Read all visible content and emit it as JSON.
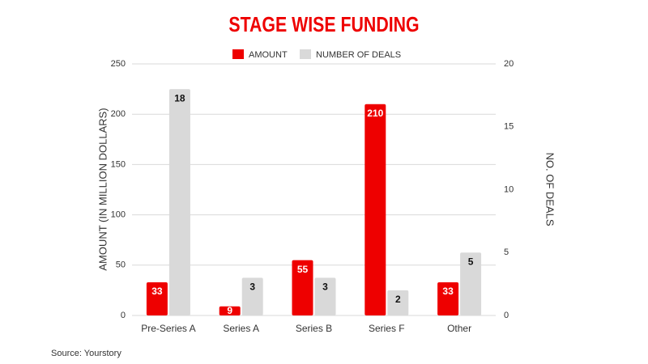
{
  "chart_data": {
    "type": "bar",
    "title": "STAGE WISE FUNDING",
    "source": "Source: Yourstory",
    "ylabel": "AMOUNT (IN MILLION DOLLARS)",
    "y2label": "NO. OF DEALS",
    "categories": [
      "Pre-Series A",
      "Series A",
      "Series B",
      "Series F",
      "Other"
    ],
    "series": [
      {
        "name": "AMOUNT",
        "color": "#ee0000",
        "values": [
          33,
          9,
          55,
          210,
          33
        ]
      },
      {
        "name": "NUMBER OF DEALS",
        "color": "#d9d9d9",
        "axis": "y2",
        "values": [
          18,
          3,
          3,
          2,
          5
        ]
      }
    ],
    "ylim": [
      0,
      250
    ],
    "yticks": [
      0,
      50,
      100,
      150,
      200,
      250
    ],
    "y2lim": [
      0,
      20
    ],
    "y2ticks": [
      0,
      5,
      10,
      15,
      20
    ],
    "grid": true,
    "legend": "top"
  }
}
